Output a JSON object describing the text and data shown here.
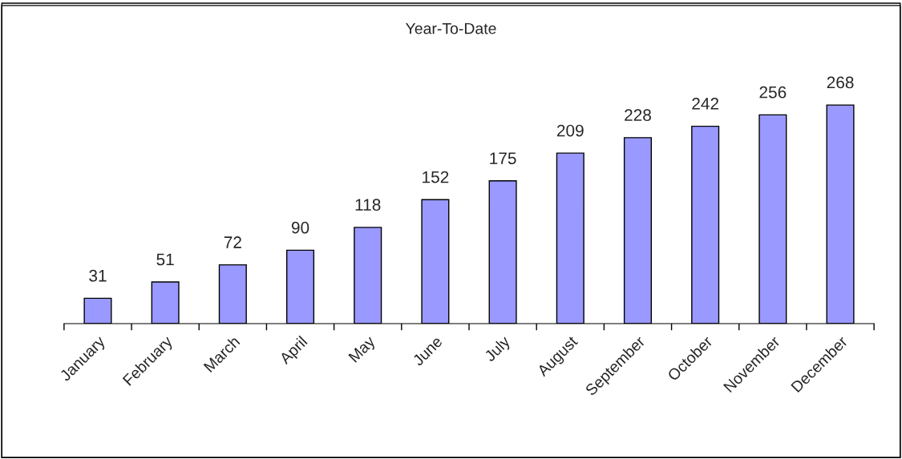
{
  "chart_data": {
    "type": "bar",
    "title": "Year-To-Date",
    "categories": [
      "January",
      "February",
      "March",
      "April",
      "May",
      "June",
      "July",
      "August",
      "September",
      "October",
      "November",
      "December"
    ],
    "values": [
      31,
      51,
      72,
      90,
      118,
      152,
      175,
      209,
      228,
      242,
      256,
      268
    ],
    "color": "#9999ff",
    "tick_labels": "x",
    "data_labels": true,
    "grid": false,
    "legend": false
  }
}
